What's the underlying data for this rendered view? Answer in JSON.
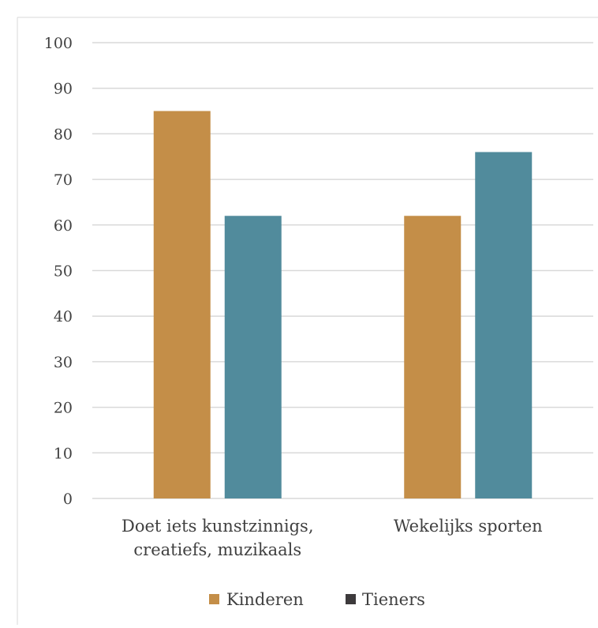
{
  "chart_data": {
    "type": "bar",
    "title": "",
    "xlabel": "",
    "ylabel": "",
    "ylim": [
      0,
      100
    ],
    "yticks": [
      0,
      10,
      20,
      30,
      40,
      50,
      60,
      70,
      80,
      90,
      100
    ],
    "grid": true,
    "legend_position": "bottom",
    "categories": [
      [
        "Doet iets kunstzinnigs,",
        "creatiefs, muzikaals"
      ],
      [
        "Wekelijks sporten"
      ]
    ],
    "series": [
      {
        "name": "Kinderen",
        "color": "#c48e48",
        "legend_color": "#c48e48",
        "values": [
          85,
          62
        ]
      },
      {
        "name": "Tieners",
        "color": "#518b9c",
        "legend_color": "#3d3a3c",
        "values": [
          62,
          76
        ]
      }
    ]
  }
}
